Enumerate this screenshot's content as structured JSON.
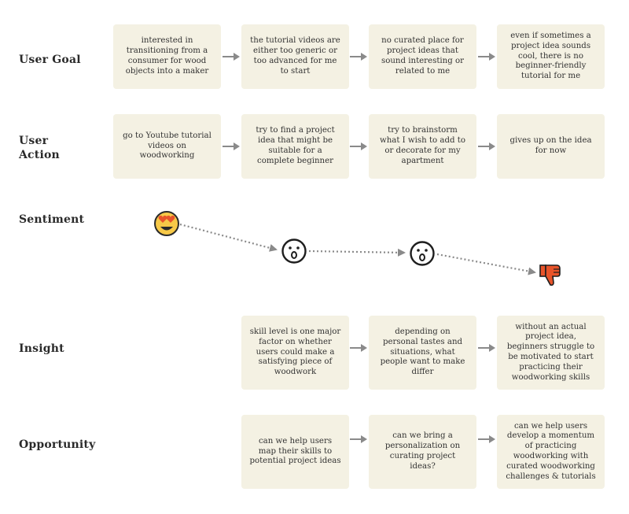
{
  "rows": {
    "user_goal": "User Goal",
    "user_action_line1": "User",
    "user_action_line2": "Action",
    "sentiment": "Sentiment",
    "insight": "Insight",
    "opportunity": "Opportunity"
  },
  "user_goal": [
    "interested in transitioning from a consumer for wood objects into a maker",
    "the tutorial videos are either too generic or too advanced for me to start",
    "no curated place for project ideas that sound interesting or related to me",
    "even if sometimes a project idea sounds cool, there is no beginner-friendly tutorial for me"
  ],
  "user_action": [
    "go to Youtube tutorial videos on woodworking",
    "try to find a project idea that might be suitable for a complete beginner",
    "try to brainstorm what I wish to add to or decorate for my apartment",
    "gives up on the idea for now"
  ],
  "sentiment": {
    "steps": [
      "heart-eyes",
      "surprised",
      "surprised",
      "thumbs-down"
    ],
    "colors": {
      "yellow": "#f7c948",
      "orange": "#e8542a",
      "line": "#8a8a8a"
    }
  },
  "insight": [
    "skill level is one major factor on whether users could make a satisfying piece of woodwork",
    "depending on personal tastes and situations, what people want to make differ",
    "without an actual project idea, beginners struggle to be motivated to start practicing their woodworking skills"
  ],
  "opportunity": [
    "can we help users map their skills to potential project ideas",
    "can we bring a personalization on curating project ideas?",
    "can we help users develop a momentum of practicing woodworking with curated woodworking challenges & tutorials"
  ],
  "colors": {
    "card": "#f4f1e3",
    "arrow": "#8a8a8a",
    "text": "#333333"
  }
}
